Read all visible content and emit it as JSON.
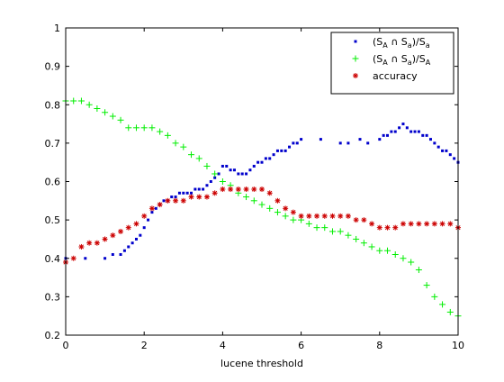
{
  "chart_data": {
    "type": "scatter",
    "title": "",
    "xlabel": "lucene threshold",
    "ylabel": "",
    "xlim": [
      0,
      10
    ],
    "ylim": [
      0.2,
      1
    ],
    "xticks": [
      "0",
      "2",
      "4",
      "6",
      "8",
      "10"
    ],
    "yticks": [
      "0.2",
      "0.3",
      "0.4",
      "0.5",
      "0.6",
      "0.7",
      "0.8",
      "0.9",
      "1"
    ],
    "grid": false,
    "legend_position": "top-right",
    "series": [
      {
        "name": "(S_A ∩ S_a)/S_a",
        "legend_main": "(S",
        "legend_sub1": "A",
        "legend_mid": " ∩ S",
        "legend_sub2": "a",
        "legend_end": ")/S",
        "legend_sub3": "a",
        "marker": "dot",
        "color": "#0000cc",
        "x": [
          0.0,
          0.5,
          1.0,
          1.2,
          1.4,
          1.5,
          1.6,
          1.7,
          1.8,
          1.9,
          2.0,
          2.1,
          2.2,
          2.3,
          2.4,
          2.5,
          2.6,
          2.7,
          2.8,
          2.9,
          3.0,
          3.1,
          3.2,
          3.3,
          3.4,
          3.5,
          3.6,
          3.7,
          3.8,
          3.9,
          4.0,
          4.1,
          4.2,
          4.3,
          4.4,
          4.5,
          4.6,
          4.7,
          4.8,
          4.9,
          5.0,
          5.1,
          5.2,
          5.3,
          5.4,
          5.5,
          5.6,
          5.7,
          5.8,
          5.9,
          6.0,
          6.5,
          7.0,
          7.2,
          7.5,
          7.7,
          8.0,
          8.1,
          8.2,
          8.3,
          8.4,
          8.5,
          8.6,
          8.7,
          8.8,
          8.9,
          9.0,
          9.1,
          9.2,
          9.3,
          9.4,
          9.5,
          9.6,
          9.7,
          9.8,
          9.9,
          10.0
        ],
        "y": [
          0.4,
          0.4,
          0.4,
          0.41,
          0.41,
          0.42,
          0.43,
          0.44,
          0.45,
          0.46,
          0.48,
          0.5,
          0.52,
          0.53,
          0.54,
          0.55,
          0.55,
          0.56,
          0.56,
          0.57,
          0.57,
          0.57,
          0.57,
          0.58,
          0.58,
          0.58,
          0.59,
          0.6,
          0.61,
          0.62,
          0.64,
          0.64,
          0.63,
          0.63,
          0.62,
          0.62,
          0.62,
          0.63,
          0.64,
          0.65,
          0.65,
          0.66,
          0.66,
          0.67,
          0.68,
          0.68,
          0.68,
          0.69,
          0.7,
          0.7,
          0.71,
          0.71,
          0.7,
          0.7,
          0.71,
          0.7,
          0.71,
          0.72,
          0.72,
          0.73,
          0.73,
          0.74,
          0.75,
          0.74,
          0.73,
          0.73,
          0.73,
          0.72,
          0.72,
          0.71,
          0.7,
          0.69,
          0.68,
          0.68,
          0.67,
          0.66,
          0.65
        ]
      },
      {
        "name": "(S_A ∩ S_a)/S_A",
        "legend_main": "(S",
        "legend_sub1": "A",
        "legend_mid": " ∩ S",
        "legend_sub2": "a",
        "legend_end": ")/S",
        "legend_sub3": "A",
        "marker": "plus",
        "color": "#00ee00",
        "x": [
          0.0,
          0.2,
          0.4,
          0.6,
          0.8,
          1.0,
          1.2,
          1.4,
          1.6,
          1.8,
          2.0,
          2.2,
          2.4,
          2.6,
          2.8,
          3.0,
          3.2,
          3.4,
          3.6,
          3.8,
          4.0,
          4.2,
          4.4,
          4.6,
          4.8,
          5.0,
          5.2,
          5.4,
          5.6,
          5.8,
          6.0,
          6.2,
          6.4,
          6.6,
          6.8,
          7.0,
          7.2,
          7.4,
          7.6,
          7.8,
          8.0,
          8.2,
          8.4,
          8.6,
          8.8,
          9.0,
          9.2,
          9.4,
          9.6,
          9.8,
          10.0
        ],
        "y": [
          0.81,
          0.81,
          0.81,
          0.8,
          0.79,
          0.78,
          0.77,
          0.76,
          0.74,
          0.74,
          0.74,
          0.74,
          0.73,
          0.72,
          0.7,
          0.69,
          0.67,
          0.66,
          0.64,
          0.62,
          0.6,
          0.59,
          0.57,
          0.56,
          0.55,
          0.54,
          0.53,
          0.52,
          0.51,
          0.5,
          0.5,
          0.49,
          0.48,
          0.48,
          0.47,
          0.47,
          0.46,
          0.45,
          0.44,
          0.43,
          0.42,
          0.42,
          0.41,
          0.4,
          0.39,
          0.37,
          0.33,
          0.3,
          0.28,
          0.26,
          0.25
        ]
      },
      {
        "name": "accuracy",
        "legend_main": "accuracy",
        "marker": "asterisk",
        "color": "#cc0000",
        "x": [
          0.0,
          0.2,
          0.4,
          0.6,
          0.8,
          1.0,
          1.2,
          1.4,
          1.6,
          1.8,
          2.0,
          2.2,
          2.4,
          2.6,
          2.8,
          3.0,
          3.2,
          3.4,
          3.6,
          3.8,
          4.0,
          4.2,
          4.4,
          4.6,
          4.8,
          5.0,
          5.2,
          5.4,
          5.6,
          5.8,
          6.0,
          6.2,
          6.4,
          6.6,
          6.8,
          7.0,
          7.2,
          7.4,
          7.6,
          7.8,
          8.0,
          8.2,
          8.4,
          8.6,
          8.8,
          9.0,
          9.2,
          9.4,
          9.6,
          9.8,
          10.0
        ],
        "y": [
          0.39,
          0.4,
          0.43,
          0.44,
          0.44,
          0.45,
          0.46,
          0.47,
          0.48,
          0.49,
          0.51,
          0.53,
          0.54,
          0.55,
          0.55,
          0.55,
          0.56,
          0.56,
          0.56,
          0.57,
          0.58,
          0.58,
          0.58,
          0.58,
          0.58,
          0.58,
          0.57,
          0.55,
          0.53,
          0.52,
          0.51,
          0.51,
          0.51,
          0.51,
          0.51,
          0.51,
          0.51,
          0.5,
          0.5,
          0.49,
          0.48,
          0.48,
          0.48,
          0.49,
          0.49,
          0.49,
          0.49,
          0.49,
          0.49,
          0.49,
          0.48
        ]
      }
    ]
  }
}
